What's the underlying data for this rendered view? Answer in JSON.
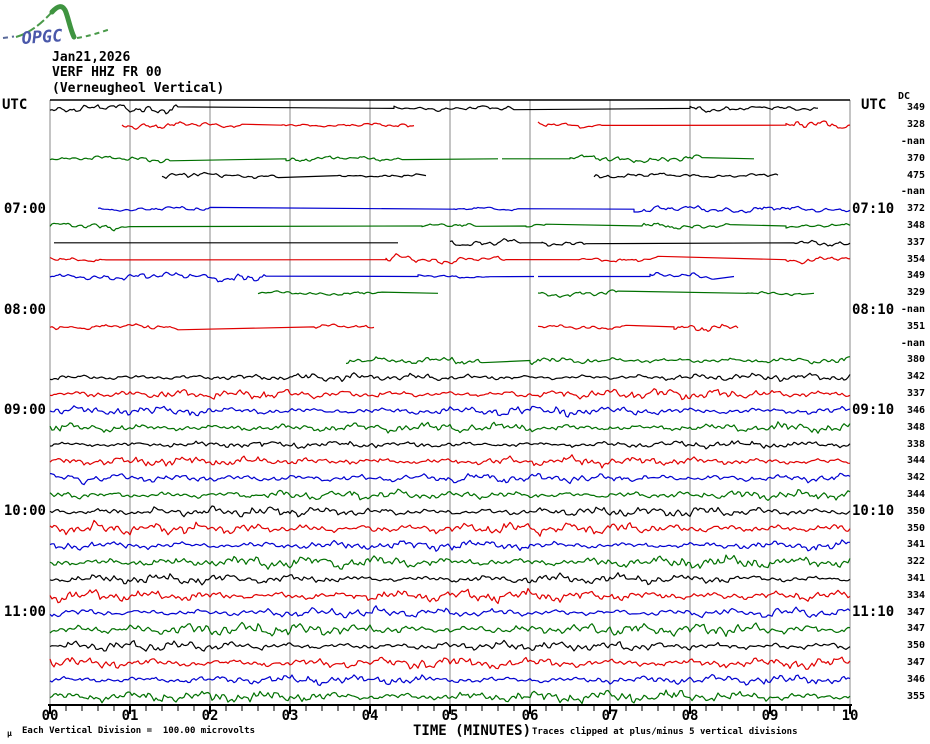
{
  "logo": {
    "text": "OPGC"
  },
  "header": {
    "date": "Jan21,2026",
    "station_code": "VERF HHZ FR 00",
    "station_name": "(Verneugheol Vertical)"
  },
  "axis": {
    "utc_left": "UTC",
    "utc_right": "UTC",
    "dc_header": "DC",
    "x_title": "TIME (MINUTES)",
    "x_ticks": [
      "00",
      "01",
      "02",
      "03",
      "04",
      "05",
      "06",
      "07",
      "08",
      "09",
      "10"
    ]
  },
  "footer": {
    "scale_glyph": "μ",
    "scale_note": "Each Vertical Division =  100.00 microvolts",
    "clip_note": "Traces clipped at plus/minus 5 vertical divisions"
  },
  "colors": {
    "black": "#000000",
    "red": "#e00000",
    "blue": "#0000d0",
    "green": "#007000",
    "grid": "#8a8a8a"
  },
  "chart_data": {
    "type": "line",
    "title": "Helicorder seismogram VERF HHZ FR 00 (Verneugheol Vertical), Jan21,2026",
    "x_label": "TIME (MINUTES)",
    "x_range_minutes": [
      0,
      10
    ],
    "minutes_per_line": 10,
    "grid": true,
    "legend": "none",
    "hour_labels_left": [
      "07:00",
      "08:00",
      "09:00",
      "10:00",
      "11:00"
    ],
    "hour_labels_right": [
      "07:10",
      "08:10",
      "09:10",
      "10:10",
      "11:10"
    ],
    "rows": [
      {
        "n": 1,
        "color": "black",
        "dc": "349",
        "left": "",
        "right": "",
        "segments": [
          [
            0,
            1.6,
            4
          ],
          [
            1.6,
            4.3,
            0
          ],
          [
            4.3,
            5.8,
            3
          ],
          [
            5.8,
            8.0,
            0
          ],
          [
            8.0,
            9.6,
            4
          ]
        ]
      },
      {
        "n": 2,
        "color": "red",
        "dc": "328",
        "left": "",
        "right": "",
        "segments": [
          [
            0.9,
            2.4,
            4
          ],
          [
            2.4,
            2.9,
            0
          ],
          [
            2.9,
            4.55,
            2
          ],
          [
            6.1,
            6.9,
            3
          ],
          [
            6.9,
            9.2,
            0
          ],
          [
            9.2,
            10,
            4
          ]
        ]
      },
      {
        "n": 3,
        "color": "blue",
        "dc": "-nan",
        "left": "",
        "right": "",
        "segments": []
      },
      {
        "n": 4,
        "color": "green",
        "dc": "370",
        "left": "",
        "right": "",
        "segments": [
          [
            0,
            1.5,
            3
          ],
          [
            1.5,
            2.95,
            0
          ],
          [
            2.95,
            4.4,
            3
          ],
          [
            4.4,
            5.6,
            0
          ],
          [
            5.65,
            6.5,
            0
          ],
          [
            6.5,
            8.15,
            3
          ],
          [
            8.15,
            8.8,
            0
          ]
        ]
      },
      {
        "n": 5,
        "color": "black",
        "dc": "475",
        "left": "",
        "right": "",
        "segments": [
          [
            1.4,
            2.85,
            3
          ],
          [
            2.85,
            3.6,
            0
          ],
          [
            3.6,
            4.6,
            2
          ],
          [
            4.6,
            4.7,
            0
          ],
          [
            6.8,
            9.1,
            3
          ]
        ]
      },
      {
        "n": 6,
        "color": "red",
        "dc": "-nan",
        "left": "",
        "right": "",
        "segments": []
      },
      {
        "n": 7,
        "color": "blue",
        "dc": "372",
        "left": "07:00",
        "right": "07:10",
        "segments": [
          [
            0.6,
            2.0,
            3
          ],
          [
            2.0,
            5.05,
            0
          ],
          [
            5.05,
            5.85,
            3
          ],
          [
            5.85,
            7.3,
            0
          ],
          [
            7.3,
            10,
            3
          ]
        ]
      },
      {
        "n": 8,
        "color": "green",
        "dc": "348",
        "left": "",
        "right": "",
        "segments": [
          [
            0,
            1.0,
            3
          ],
          [
            1.0,
            4.65,
            0
          ],
          [
            4.65,
            5.35,
            3
          ],
          [
            5.35,
            5.95,
            0
          ],
          [
            5.95,
            6.2,
            2
          ],
          [
            6.2,
            7.4,
            0
          ],
          [
            7.4,
            8.5,
            3
          ],
          [
            8.5,
            9.2,
            0
          ],
          [
            9.2,
            10,
            3
          ]
        ]
      },
      {
        "n": 9,
        "color": "black",
        "dc": "337",
        "left": "",
        "right": "",
        "segments": [
          [
            0.05,
            4.35,
            0
          ],
          [
            5.0,
            5.9,
            3
          ],
          [
            5.9,
            6.15,
            0
          ],
          [
            6.15,
            6.7,
            3
          ],
          [
            6.7,
            9.3,
            0
          ],
          [
            9.3,
            10,
            3
          ]
        ]
      },
      {
        "n": 10,
        "color": "red",
        "dc": "354",
        "left": "",
        "right": "",
        "segments": [
          [
            0,
            0.7,
            3
          ],
          [
            0.7,
            4.2,
            0
          ],
          [
            4.2,
            5.7,
            4
          ],
          [
            5.7,
            6.6,
            0
          ],
          [
            6.6,
            7.6,
            3
          ],
          [
            7.6,
            9.2,
            0
          ],
          [
            9.2,
            10,
            3
          ]
        ]
      },
      {
        "n": 11,
        "color": "blue",
        "dc": "349",
        "left": "",
        "right": "",
        "segments": [
          [
            0,
            2.7,
            4
          ],
          [
            2.7,
            4.6,
            0
          ],
          [
            4.6,
            5.5,
            3
          ],
          [
            5.5,
            6.05,
            0
          ],
          [
            6.1,
            7.5,
            0
          ],
          [
            7.5,
            8.3,
            3
          ],
          [
            8.3,
            8.55,
            0
          ]
        ]
      },
      {
        "n": 12,
        "color": "green",
        "dc": "329",
        "left": "",
        "right": "",
        "segments": [
          [
            2.6,
            4.15,
            3
          ],
          [
            4.15,
            4.85,
            0
          ],
          [
            6.1,
            7.1,
            3
          ],
          [
            7.1,
            8.7,
            0
          ],
          [
            8.7,
            9.4,
            3
          ],
          [
            9.4,
            9.55,
            0
          ]
        ]
      },
      {
        "n": 13,
        "color": "black",
        "dc": "-nan",
        "left": "08:00",
        "right": "08:10",
        "segments": []
      },
      {
        "n": 14,
        "color": "red",
        "dc": "351",
        "left": "",
        "right": "",
        "segments": [
          [
            0,
            1.6,
            4
          ],
          [
            1.6,
            3.3,
            0
          ],
          [
            3.3,
            4.05,
            2
          ],
          [
            6.1,
            7.2,
            3
          ],
          [
            7.2,
            7.8,
            0
          ],
          [
            7.8,
            8.6,
            3
          ]
        ]
      },
      {
        "n": 15,
        "color": "blue",
        "dc": "-nan",
        "left": "",
        "right": "",
        "segments": []
      },
      {
        "n": 16,
        "color": "green",
        "dc": "380",
        "left": "",
        "right": "",
        "segments": [
          [
            3.7,
            5.4,
            3
          ],
          [
            5.4,
            6.0,
            0
          ],
          [
            6.0,
            10,
            3
          ]
        ]
      },
      {
        "n": 17,
        "color": "black",
        "dc": "342",
        "left": "",
        "right": "",
        "segments": [
          [
            0,
            10,
            3
          ]
        ]
      },
      {
        "n": 18,
        "color": "red",
        "dc": "337",
        "left": "",
        "right": "",
        "segments": [
          [
            0,
            10,
            4
          ]
        ]
      },
      {
        "n": 19,
        "color": "blue",
        "dc": "346",
        "left": "09:00",
        "right": "09:10",
        "segments": [
          [
            0,
            10,
            4
          ]
        ]
      },
      {
        "n": 20,
        "color": "green",
        "dc": "348",
        "left": "",
        "right": "",
        "segments": [
          [
            0,
            10,
            4
          ]
        ]
      },
      {
        "n": 21,
        "color": "black",
        "dc": "338",
        "left": "",
        "right": "",
        "segments": [
          [
            0,
            10,
            3
          ]
        ]
      },
      {
        "n": 22,
        "color": "red",
        "dc": "344",
        "left": "",
        "right": "",
        "segments": [
          [
            0,
            10,
            4
          ]
        ]
      },
      {
        "n": 23,
        "color": "blue",
        "dc": "342",
        "left": "",
        "right": "",
        "segments": [
          [
            0,
            10,
            4
          ]
        ]
      },
      {
        "n": 24,
        "color": "green",
        "dc": "344",
        "left": "",
        "right": "",
        "segments": [
          [
            0,
            10,
            4
          ]
        ]
      },
      {
        "n": 25,
        "color": "black",
        "dc": "350",
        "left": "10:00",
        "right": "10:10",
        "segments": [
          [
            0,
            10,
            4
          ]
        ]
      },
      {
        "n": 26,
        "color": "red",
        "dc": "350",
        "left": "",
        "right": "",
        "segments": [
          [
            0,
            10,
            5
          ]
        ]
      },
      {
        "n": 27,
        "color": "blue",
        "dc": "341",
        "left": "",
        "right": "",
        "segments": [
          [
            0,
            10,
            4
          ]
        ]
      },
      {
        "n": 28,
        "color": "green",
        "dc": "322",
        "left": "",
        "right": "",
        "segments": [
          [
            0,
            10,
            5
          ]
        ]
      },
      {
        "n": 29,
        "color": "black",
        "dc": "341",
        "left": "",
        "right": "",
        "segments": [
          [
            0,
            10,
            4
          ]
        ]
      },
      {
        "n": 30,
        "color": "red",
        "dc": "334",
        "left": "",
        "right": "",
        "segments": [
          [
            0,
            10,
            5
          ]
        ]
      },
      {
        "n": 31,
        "color": "blue",
        "dc": "347",
        "left": "11:00",
        "right": "11:10",
        "segments": [
          [
            0,
            10,
            4
          ]
        ]
      },
      {
        "n": 32,
        "color": "green",
        "dc": "347",
        "left": "",
        "right": "",
        "segments": [
          [
            0,
            10,
            5
          ]
        ]
      },
      {
        "n": 33,
        "color": "black",
        "dc": "350",
        "left": "",
        "right": "",
        "segments": [
          [
            0,
            10,
            4
          ]
        ]
      },
      {
        "n": 34,
        "color": "red",
        "dc": "347",
        "left": "",
        "right": "",
        "segments": [
          [
            0,
            10,
            5
          ]
        ]
      },
      {
        "n": 35,
        "color": "blue",
        "dc": "346",
        "left": "",
        "right": "",
        "segments": [
          [
            0,
            10,
            4
          ]
        ]
      },
      {
        "n": 36,
        "color": "green",
        "dc": "355",
        "left": "",
        "right": "",
        "segments": [
          [
            0,
            10,
            5
          ]
        ]
      }
    ]
  }
}
